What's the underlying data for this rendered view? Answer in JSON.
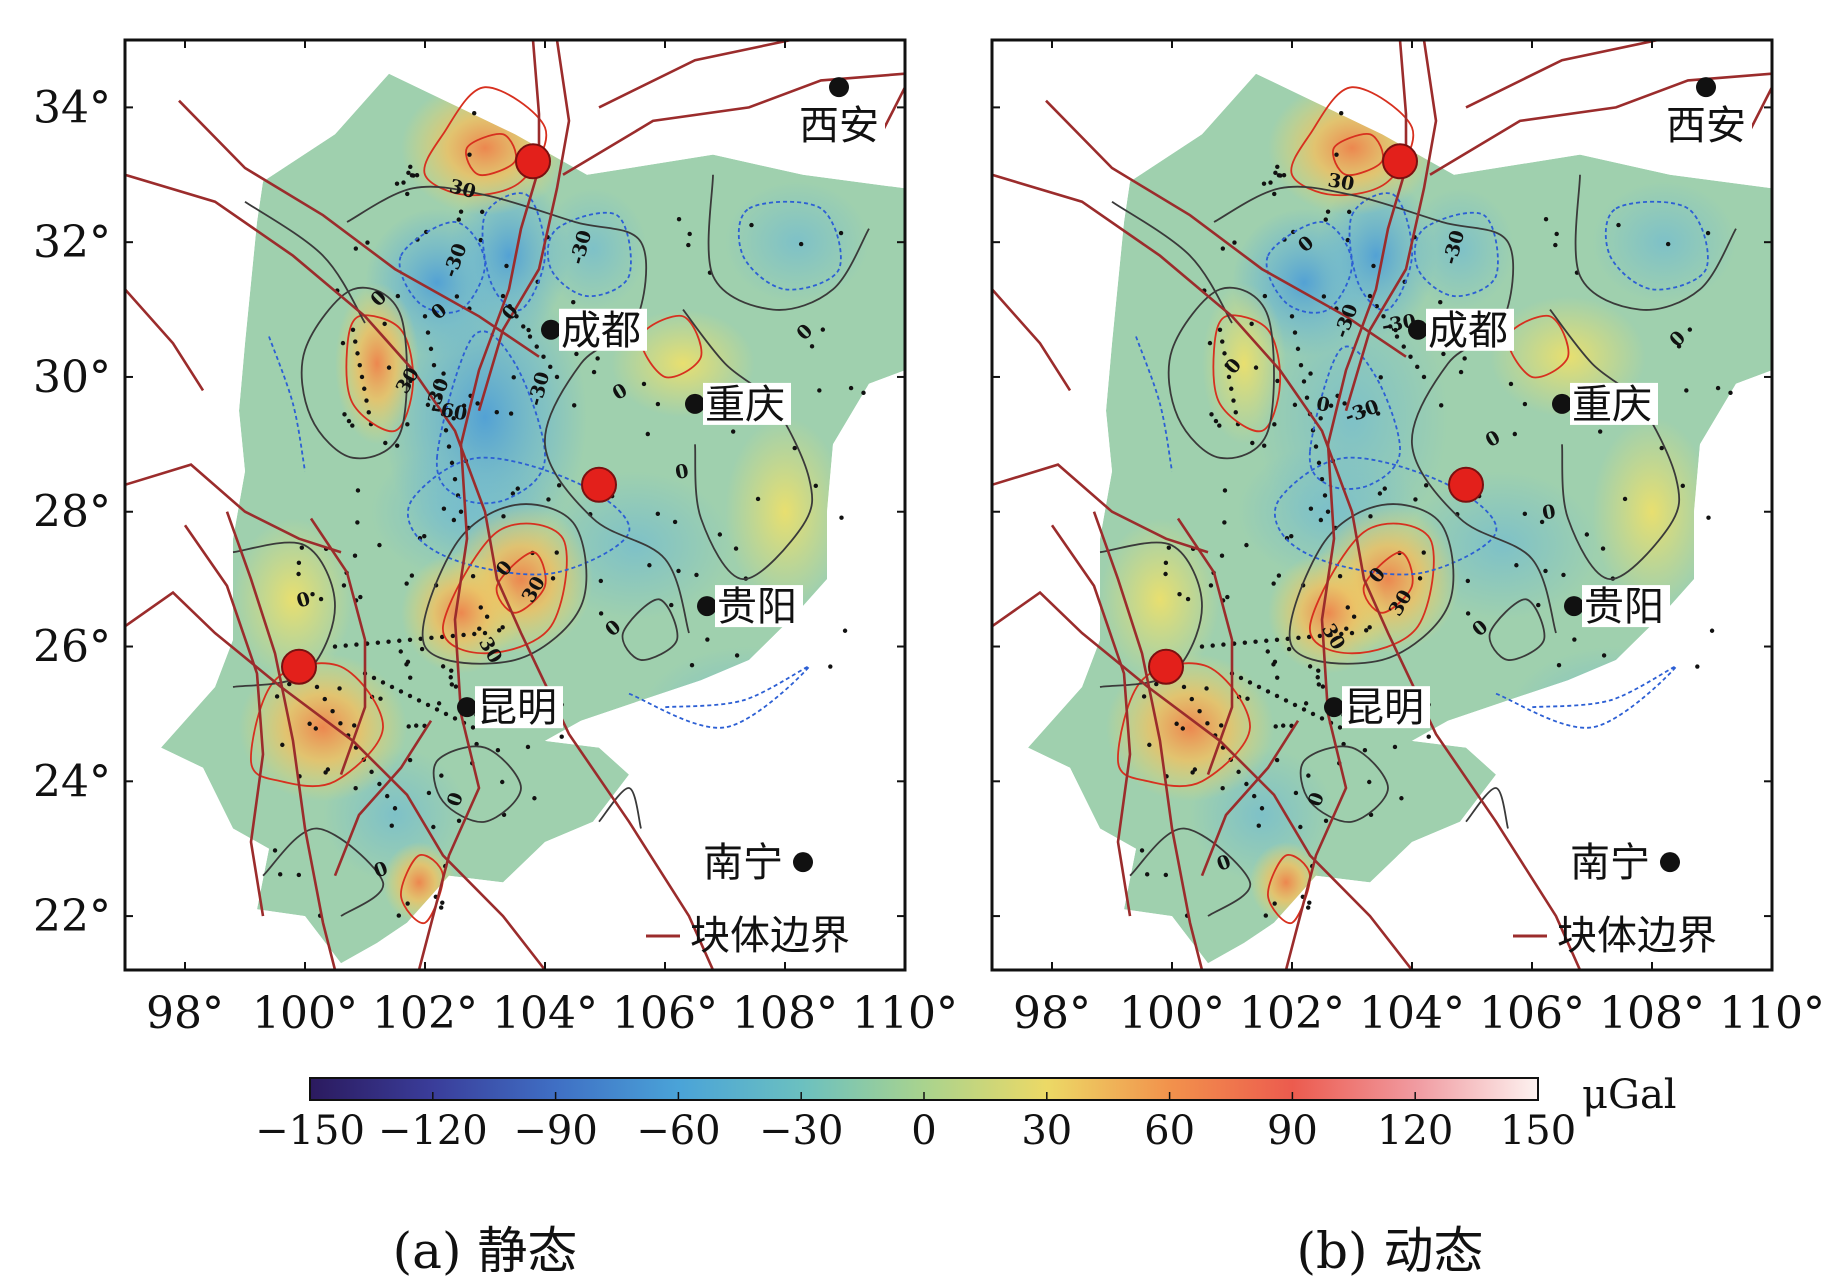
{
  "panels": [
    {
      "id": "a",
      "caption": "(a) 静态",
      "contour_labels": [
        "30",
        "-30",
        "0",
        "-30",
        "0",
        "0",
        "30",
        "-30",
        "-30",
        "-60",
        "0",
        "0",
        "0",
        "30",
        "30",
        "0",
        "0",
        "0",
        "0",
        "0"
      ]
    },
    {
      "id": "b",
      "caption": "(b) 动态",
      "contour_labels": [
        "30",
        "-30",
        "0",
        "-30",
        "0",
        "-30",
        "0",
        "-30",
        "0",
        "30",
        "30",
        "0",
        "0",
        "0",
        "0",
        "0",
        "0"
      ]
    }
  ],
  "x_ticks": [
    "98°",
    "100°",
    "102°",
    "104°",
    "106°",
    "108°",
    "110°"
  ],
  "y_ticks": [
    "22°",
    "24°",
    "26°",
    "28°",
    "30°",
    "32°",
    "34°"
  ],
  "cities": [
    {
      "name": "西安",
      "lon": 108.9,
      "lat": 34.3
    },
    {
      "name": "成都",
      "lon": 104.1,
      "lat": 30.7
    },
    {
      "name": "重庆",
      "lon": 106.5,
      "lat": 29.6
    },
    {
      "name": "贵阳",
      "lon": 106.7,
      "lat": 26.6
    },
    {
      "name": "昆明",
      "lon": 102.7,
      "lat": 25.1
    },
    {
      "name": "南宁",
      "lon": 108.3,
      "lat": 22.8
    }
  ],
  "epicenters": [
    {
      "lon": 103.8,
      "lat": 33.2
    },
    {
      "lon": 104.9,
      "lat": 28.4
    },
    {
      "lon": 99.9,
      "lat": 25.7
    }
  ],
  "legend": {
    "label": "块体边界",
    "color": "#9b2c2c"
  },
  "colorbar": {
    "unit": "μGal",
    "ticks": [
      "−150",
      "−120",
      "−90",
      "−60",
      "−30",
      "0",
      "30",
      "60",
      "90",
      "120",
      "150"
    ],
    "range": [
      -150,
      150
    ]
  },
  "colors": {
    "boundary": "#9b2c2c",
    "positive_contour": "#d7301f",
    "negative_contour": "#2c5fd4",
    "zero_contour": "#3a3a3a",
    "epicenter": "#e3201b"
  }
}
